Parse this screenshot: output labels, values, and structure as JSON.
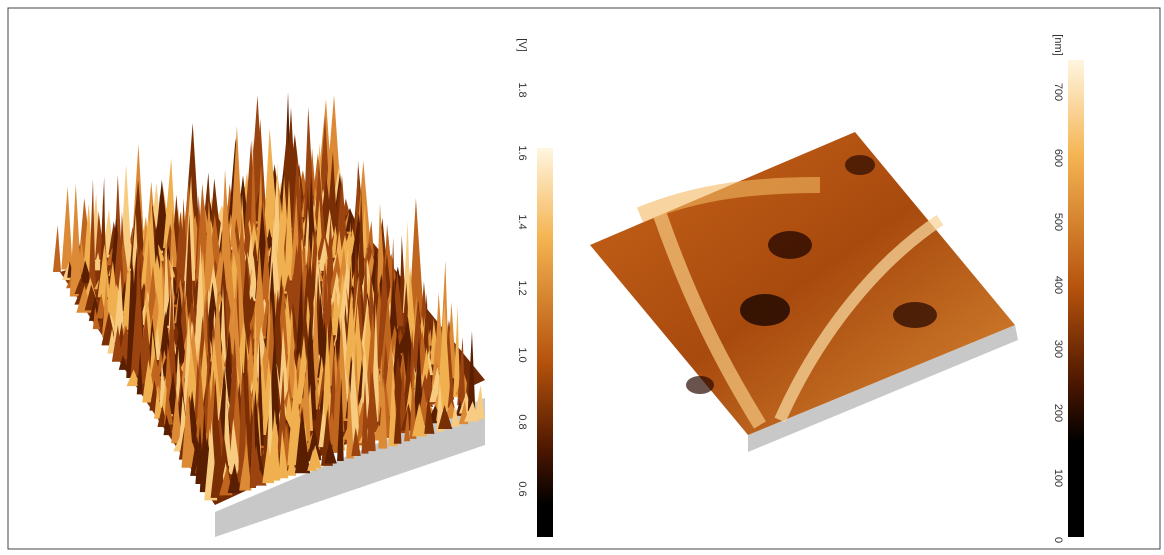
{
  "left_colorbar": {
    "unit": "[V]",
    "ticks": [
      "1.8",
      "1.6",
      "1.4",
      "1.2",
      "1.0",
      "0.8",
      "0.6"
    ]
  },
  "right_colorbar": {
    "unit": "[nm]",
    "ticks": [
      "700",
      "600",
      "500",
      "400",
      "300",
      "200",
      "100",
      "0"
    ]
  }
}
